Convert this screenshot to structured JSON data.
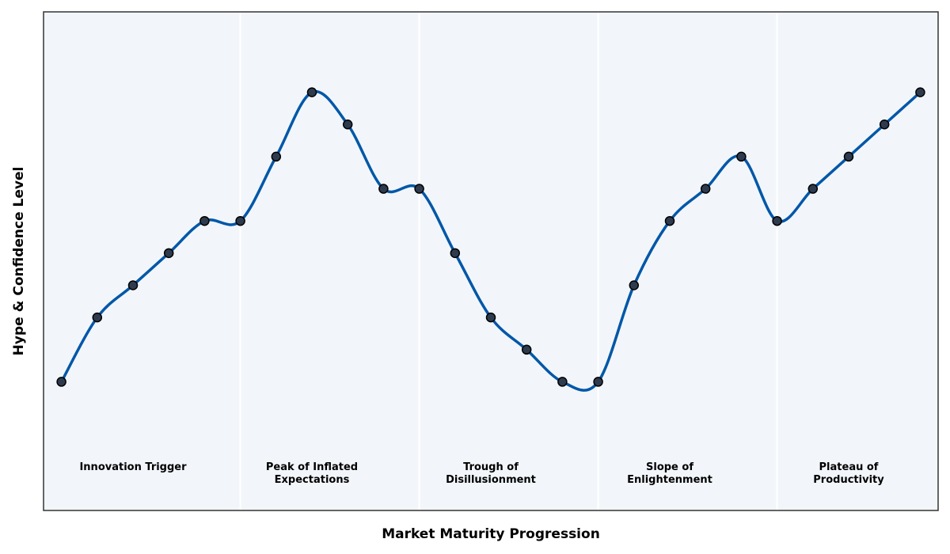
{
  "chart_data": {
    "type": "line",
    "x_label": "Market Maturity Progression",
    "y_label": "Hype & Confidence Level",
    "x": [
      0,
      1,
      2,
      3,
      4,
      5,
      6,
      7,
      8,
      9,
      10,
      11,
      12,
      13,
      14,
      15,
      16,
      17,
      18,
      19,
      20,
      21,
      22,
      23,
      24
    ],
    "series": [
      {
        "color": "#0057a8",
        "marker_color": "#2e3b4e",
        "values": [
          3,
          5,
          6,
          7,
          8,
          8,
          10,
          12,
          11,
          9,
          9,
          7,
          5,
          4,
          3,
          3,
          6,
          8,
          9,
          10,
          8,
          9,
          10,
          11,
          12
        ]
      }
    ],
    "xlim": [
      -0.5,
      24.5
    ],
    "ylim": [
      -1,
      14.5
    ],
    "phases": [
      {
        "lines": [
          "Innovation Trigger"
        ]
      },
      {
        "lines": [
          "Peak of Inflated",
          "Expectations"
        ]
      },
      {
        "lines": [
          "Trough of",
          "Disillusionment"
        ]
      },
      {
        "lines": [
          "Slope of",
          "Enlightenment"
        ]
      },
      {
        "lines": [
          "Plateau of",
          "Productivity"
        ]
      }
    ]
  }
}
